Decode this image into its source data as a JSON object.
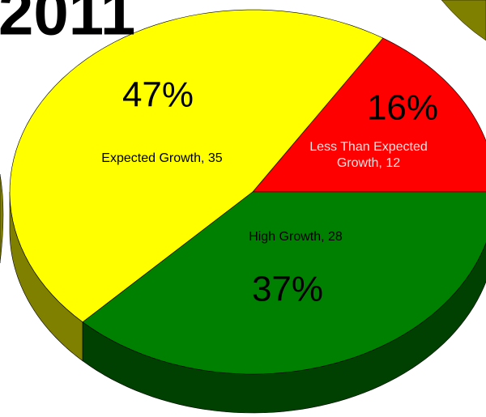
{
  "chart_data": {
    "type": "pie3d",
    "title": "2011",
    "categories": [
      "Less Than Expected Growth",
      "Expected Growth",
      "High Growth"
    ],
    "values": [
      12,
      35,
      28
    ],
    "value_labels": [
      "Less Than Expected Growth, 12",
      "Expected Growth, 35",
      "High Growth, 28"
    ],
    "percent_values": [
      16,
      47,
      37
    ],
    "percent_labels": [
      "16%",
      "47%",
      "37%"
    ],
    "colors": [
      "#ff0000",
      "#ffff00",
      "#008000"
    ],
    "side_colors": [
      "#800000",
      "#808000",
      "#004000"
    ]
  }
}
